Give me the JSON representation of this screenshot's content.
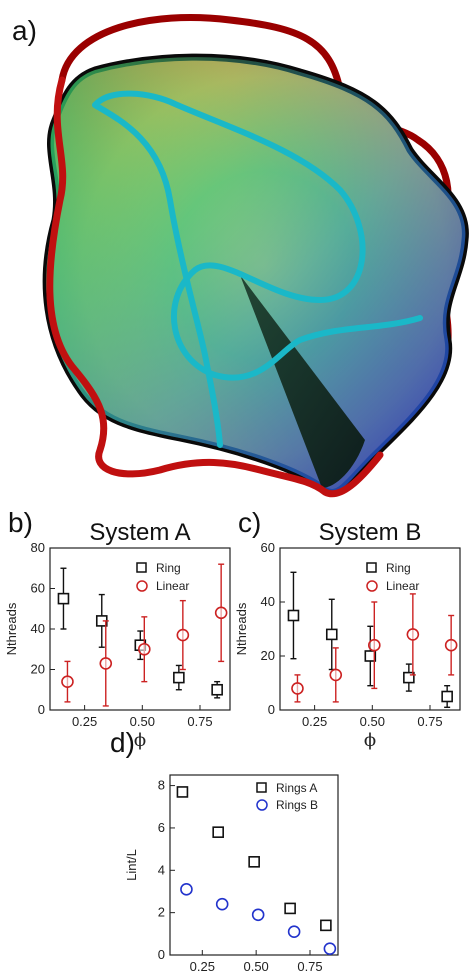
{
  "panel_labels": {
    "a": "a)",
    "b": "b)",
    "c": "c)",
    "d": "d)"
  },
  "chart_data": [
    {
      "id": "b",
      "type": "scatter",
      "title": "System A",
      "xlabel": "ϕ",
      "ylabel": "Nthreads",
      "xlim": [
        0.1,
        0.88
      ],
      "ylim": [
        0,
        80
      ],
      "x_ticks": [
        0.25,
        0.5,
        0.75
      ],
      "x_tick_labels": [
        "0.25",
        "0.50",
        "0.75"
      ],
      "y_ticks": [
        0,
        20,
        40,
        60,
        80
      ],
      "y_tick_labels": [
        "0",
        "20",
        "40",
        "60",
        "80"
      ],
      "legend_position": "top-right",
      "series": [
        {
          "name": "Ring",
          "marker": "square",
          "color": "#111111",
          "x": [
            0.167,
            0.333,
            0.5,
            0.667,
            0.833
          ],
          "y": [
            55,
            44,
            32,
            16,
            10
          ],
          "err": [
            15,
            13,
            7,
            6,
            4
          ]
        },
        {
          "name": "Linear",
          "marker": "circle",
          "color": "#cc2222",
          "x": [
            0.167,
            0.333,
            0.5,
            0.667,
            0.833
          ],
          "y": [
            14,
            23,
            30,
            37,
            48
          ],
          "err": [
            10,
            21,
            16,
            17,
            24
          ]
        }
      ]
    },
    {
      "id": "c",
      "type": "scatter",
      "title": "System B",
      "xlabel": "ϕ",
      "ylabel": "Nthreads",
      "xlim": [
        0.1,
        0.88
      ],
      "ylim": [
        0,
        60
      ],
      "x_ticks": [
        0.25,
        0.5,
        0.75
      ],
      "x_tick_labels": [
        "0.25",
        "0.50",
        "0.75"
      ],
      "y_ticks": [
        0,
        20,
        40,
        60
      ],
      "y_tick_labels": [
        "0",
        "20",
        "40",
        "60"
      ],
      "legend_position": "top-right",
      "series": [
        {
          "name": "Ring",
          "marker": "square",
          "color": "#111111",
          "x": [
            0.167,
            0.333,
            0.5,
            0.667,
            0.833
          ],
          "y": [
            35,
            28,
            20,
            12,
            5
          ],
          "err": [
            16,
            13,
            11,
            5,
            4
          ]
        },
        {
          "name": "Linear",
          "marker": "circle",
          "color": "#cc2222",
          "x": [
            0.167,
            0.333,
            0.5,
            0.667,
            0.833
          ],
          "y": [
            8,
            13,
            24,
            28,
            24
          ],
          "err": [
            5,
            10,
            16,
            15,
            11
          ]
        }
      ]
    },
    {
      "id": "d",
      "type": "scatter",
      "title": "",
      "xlabel": "ϕ",
      "ylabel": "Lint/L",
      "xlim": [
        0.1,
        0.88
      ],
      "ylim": [
        0,
        8.5
      ],
      "x_ticks": [
        0.25,
        0.5,
        0.75
      ],
      "x_tick_labels": [
        "0.25",
        "0.50",
        "0.75"
      ],
      "y_ticks": [
        0,
        2,
        4,
        6,
        8
      ],
      "y_tick_labels": [
        "0",
        "2",
        "4",
        "6",
        "8"
      ],
      "legend_position": "top-right",
      "series": [
        {
          "name": "Rings A",
          "marker": "square",
          "color": "#111111",
          "x": [
            0.167,
            0.333,
            0.5,
            0.667,
            0.833
          ],
          "y": [
            7.7,
            5.8,
            4.4,
            2.2,
            1.4
          ]
        },
        {
          "name": "Rings B",
          "marker": "circle",
          "color": "#2233cc",
          "x": [
            0.167,
            0.333,
            0.5,
            0.667,
            0.833
          ],
          "y": [
            3.1,
            2.4,
            1.9,
            1.1,
            0.3
          ]
        }
      ]
    }
  ]
}
